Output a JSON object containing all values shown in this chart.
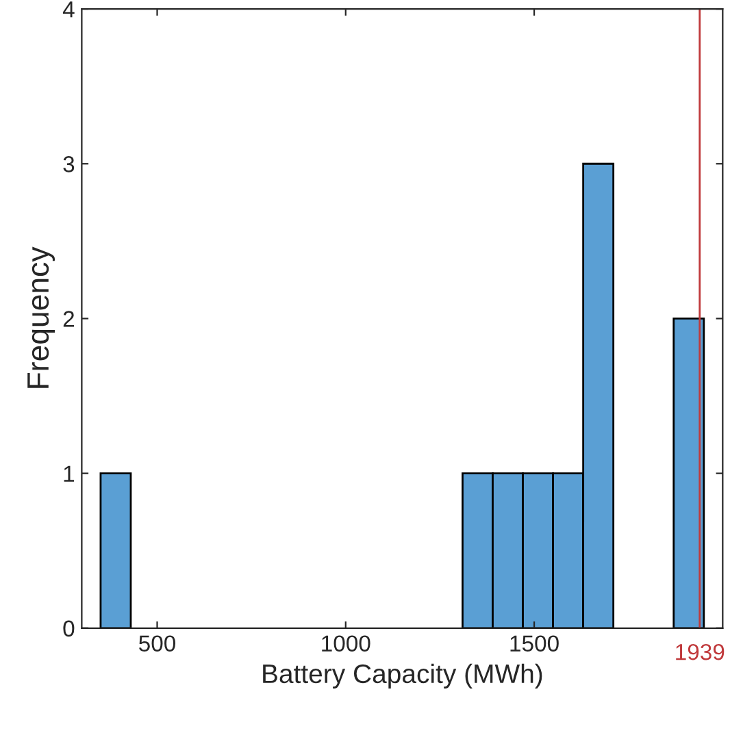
{
  "chart_data": {
    "type": "histogram",
    "xlabel": "Battery Capacity (MWh)",
    "ylabel": "Frequency",
    "bins": [
      350,
      430,
      510,
      590,
      670,
      750,
      830,
      910,
      990,
      1070,
      1150,
      1230,
      1310,
      1390,
      1470,
      1550,
      1630,
      1710,
      1790,
      1870,
      1950
    ],
    "values": [
      1,
      0,
      0,
      0,
      0,
      0,
      0,
      0,
      0,
      0,
      0,
      0,
      1,
      1,
      1,
      1,
      3,
      0,
      0,
      2
    ],
    "color": "#5a9fd4",
    "xlim": [
      300,
      2000
    ],
    "xticks": [
      500,
      1000,
      1500
    ],
    "ylim": [
      0,
      4
    ],
    "yticks": [
      0,
      1,
      2,
      3,
      4
    ],
    "ref_lines": [
      {
        "axis": "x",
        "value": 1939,
        "label": "1939",
        "color": "#c0393b"
      }
    ],
    "grid": false
  }
}
